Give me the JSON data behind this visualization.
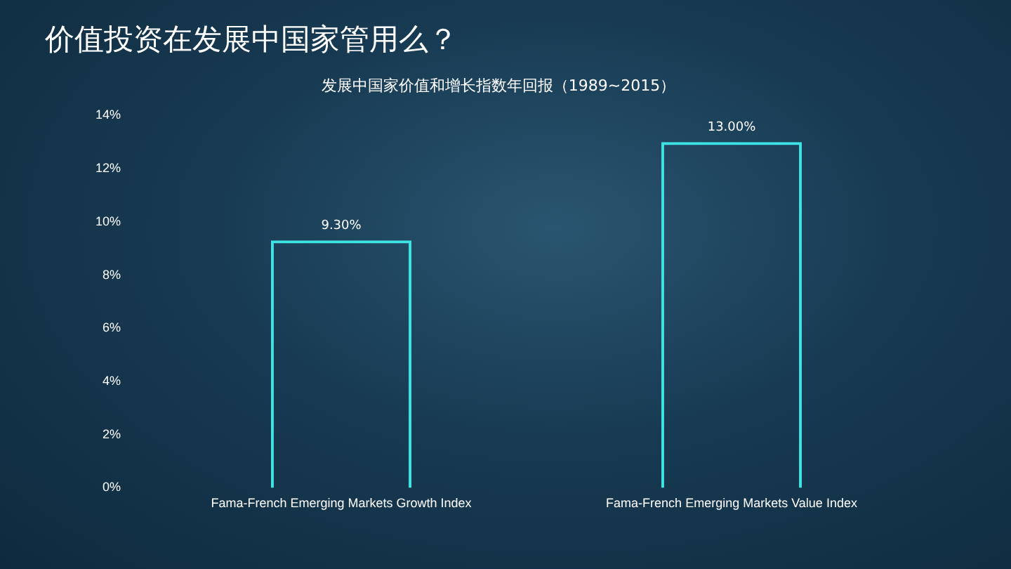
{
  "chart_data": {
    "type": "bar",
    "title": "价值投资在发展中国家管用么？",
    "subtitle": "发展中国家价值和增长指数年回报（1989~2015）",
    "categories": [
      "Fama-French Emerging Markets Growth Index",
      "Fama-French Emerging Markets Value Index"
    ],
    "values": [
      9.3,
      13.0
    ],
    "value_labels": [
      "9.30%",
      "13.00%"
    ],
    "color": "#3fe3e3",
    "ylim": [
      0,
      14
    ],
    "yticks": [
      {
        "value": 0,
        "label": "0%"
      },
      {
        "value": 2,
        "label": "2%"
      },
      {
        "value": 4,
        "label": "4%"
      },
      {
        "value": 6,
        "label": "6%"
      },
      {
        "value": 8,
        "label": "8%"
      },
      {
        "value": 10,
        "label": "10%"
      },
      {
        "value": 12,
        "label": "12%"
      },
      {
        "value": 14,
        "label": "14%"
      }
    ],
    "grid": false,
    "legend": false
  }
}
